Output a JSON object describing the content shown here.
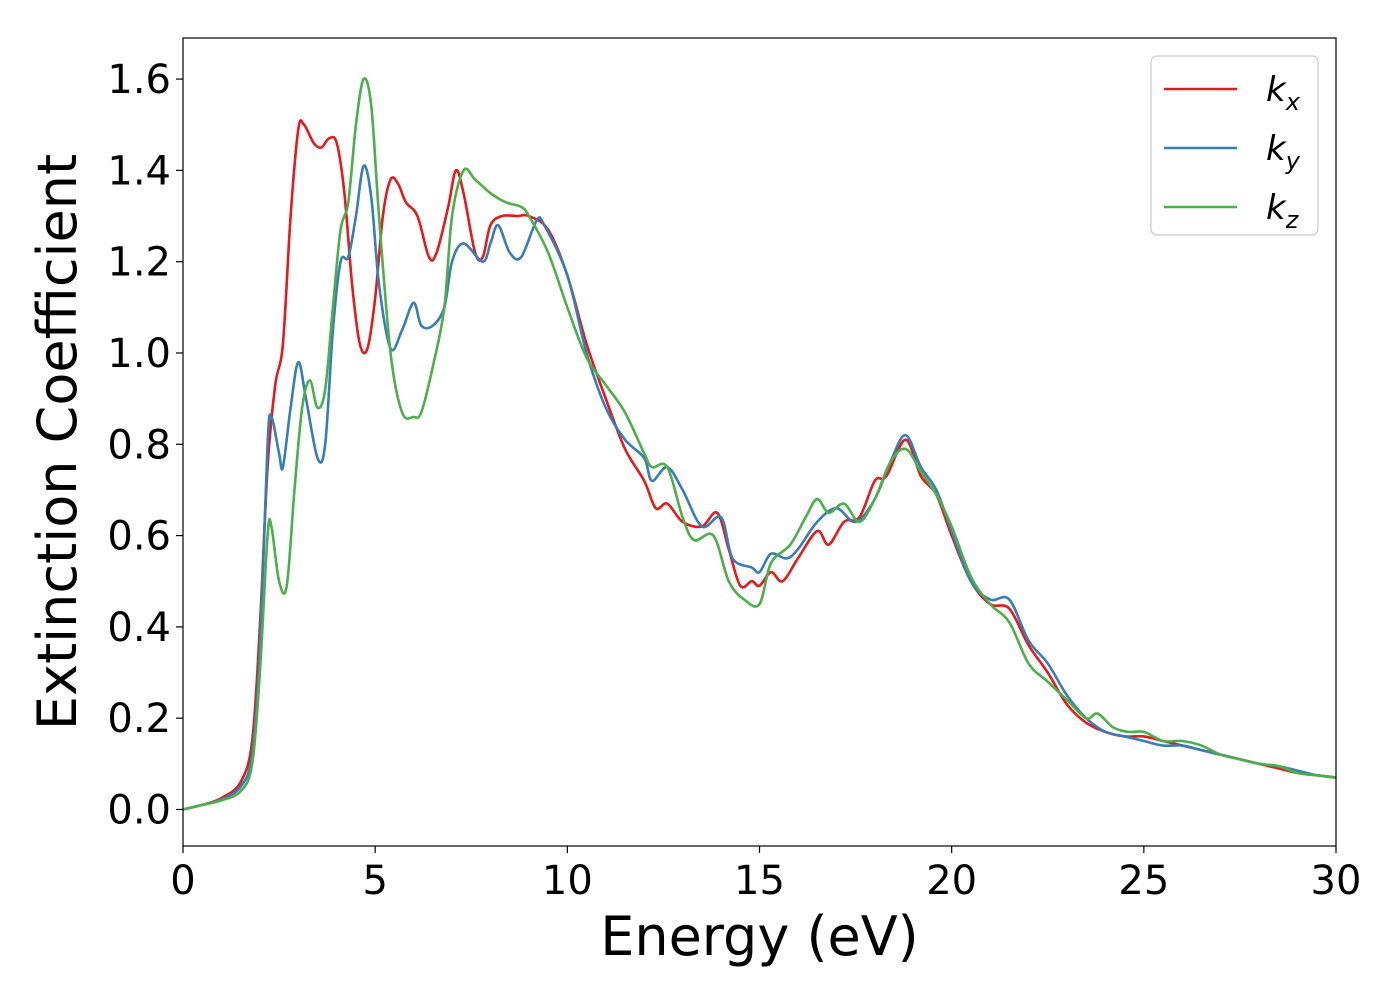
{
  "chart_data": {
    "type": "line",
    "title": "",
    "xlabel": "Energy (eV)",
    "ylabel": "Extinction Coefficient",
    "xlim": [
      0,
      30
    ],
    "ylim": [
      -0.08,
      1.69
    ],
    "xticks": [
      "0",
      "5",
      "10",
      "15",
      "20",
      "25",
      "30"
    ],
    "yticks": [
      "0.0",
      "0.2",
      "0.4",
      "0.6",
      "0.8",
      "1.0",
      "1.2",
      "1.4",
      "1.6"
    ],
    "grid": false,
    "legend_position": "top-right",
    "series": [
      {
        "name": "k_x",
        "legend_base": "k",
        "legend_sub": "x",
        "color": "#e41a1c",
        "points": [
          [
            0,
            0
          ],
          [
            0.5,
            0.01
          ],
          [
            1,
            0.025
          ],
          [
            1.5,
            0.06
          ],
          [
            1.8,
            0.15
          ],
          [
            2.0,
            0.4
          ],
          [
            2.2,
            0.75
          ],
          [
            2.4,
            0.93
          ],
          [
            2.6,
            1.02
          ],
          [
            2.8,
            1.3
          ],
          [
            3.0,
            1.49
          ],
          [
            3.15,
            1.5
          ],
          [
            3.4,
            1.46
          ],
          [
            3.6,
            1.45
          ],
          [
            3.8,
            1.47
          ],
          [
            4.0,
            1.46
          ],
          [
            4.2,
            1.35
          ],
          [
            4.4,
            1.15
          ],
          [
            4.6,
            1.02
          ],
          [
            4.8,
            1.01
          ],
          [
            5.0,
            1.12
          ],
          [
            5.2,
            1.3
          ],
          [
            5.4,
            1.38
          ],
          [
            5.6,
            1.37
          ],
          [
            5.8,
            1.33
          ],
          [
            6.1,
            1.3
          ],
          [
            6.4,
            1.21
          ],
          [
            6.6,
            1.22
          ],
          [
            6.9,
            1.32
          ],
          [
            7.1,
            1.4
          ],
          [
            7.3,
            1.35
          ],
          [
            7.6,
            1.22
          ],
          [
            7.8,
            1.21
          ],
          [
            8.0,
            1.28
          ],
          [
            8.3,
            1.3
          ],
          [
            8.7,
            1.3
          ],
          [
            9.0,
            1.3
          ],
          [
            9.5,
            1.27
          ],
          [
            10.0,
            1.17
          ],
          [
            10.5,
            1.02
          ],
          [
            11.0,
            0.9
          ],
          [
            11.5,
            0.79
          ],
          [
            12.0,
            0.72
          ],
          [
            12.3,
            0.66
          ],
          [
            12.6,
            0.67
          ],
          [
            13.0,
            0.63
          ],
          [
            13.5,
            0.62
          ],
          [
            13.9,
            0.65
          ],
          [
            14.2,
            0.57
          ],
          [
            14.5,
            0.49
          ],
          [
            14.8,
            0.5
          ],
          [
            15.0,
            0.49
          ],
          [
            15.3,
            0.52
          ],
          [
            15.6,
            0.5
          ],
          [
            16.0,
            0.55
          ],
          [
            16.5,
            0.61
          ],
          [
            16.8,
            0.58
          ],
          [
            17.2,
            0.63
          ],
          [
            17.6,
            0.64
          ],
          [
            18.0,
            0.72
          ],
          [
            18.3,
            0.73
          ],
          [
            18.8,
            0.81
          ],
          [
            19.2,
            0.73
          ],
          [
            19.6,
            0.69
          ],
          [
            20.0,
            0.6
          ],
          [
            20.5,
            0.5
          ],
          [
            21.0,
            0.45
          ],
          [
            21.5,
            0.44
          ],
          [
            22.0,
            0.36
          ],
          [
            22.5,
            0.3
          ],
          [
            23.0,
            0.23
          ],
          [
            23.5,
            0.19
          ],
          [
            24.0,
            0.17
          ],
          [
            24.5,
            0.16
          ],
          [
            25.0,
            0.16
          ],
          [
            25.5,
            0.15
          ],
          [
            26.0,
            0.14
          ],
          [
            26.5,
            0.13
          ],
          [
            27.0,
            0.12
          ],
          [
            27.5,
            0.11
          ],
          [
            28.0,
            0.1
          ],
          [
            28.5,
            0.09
          ],
          [
            29.0,
            0.08
          ],
          [
            29.5,
            0.075
          ],
          [
            30.0,
            0.07
          ]
        ]
      },
      {
        "name": "k_y",
        "legend_base": "k",
        "legend_sub": "y",
        "color": "#377eb8",
        "points": [
          [
            0,
            0
          ],
          [
            0.5,
            0.01
          ],
          [
            1,
            0.022
          ],
          [
            1.5,
            0.05
          ],
          [
            1.8,
            0.12
          ],
          [
            2.0,
            0.35
          ],
          [
            2.2,
            0.8
          ],
          [
            2.3,
            0.86
          ],
          [
            2.5,
            0.78
          ],
          [
            2.6,
            0.75
          ],
          [
            2.8,
            0.88
          ],
          [
            3.0,
            0.98
          ],
          [
            3.2,
            0.9
          ],
          [
            3.5,
            0.77
          ],
          [
            3.7,
            0.8
          ],
          [
            3.9,
            1.05
          ],
          [
            4.1,
            1.2
          ],
          [
            4.3,
            1.21
          ],
          [
            4.5,
            1.3
          ],
          [
            4.7,
            1.41
          ],
          [
            4.9,
            1.34
          ],
          [
            5.1,
            1.15
          ],
          [
            5.4,
            1.01
          ],
          [
            5.7,
            1.05
          ],
          [
            6.0,
            1.11
          ],
          [
            6.2,
            1.06
          ],
          [
            6.5,
            1.06
          ],
          [
            6.8,
            1.1
          ],
          [
            7.0,
            1.2
          ],
          [
            7.3,
            1.24
          ],
          [
            7.8,
            1.2
          ],
          [
            8.0,
            1.24
          ],
          [
            8.2,
            1.28
          ],
          [
            8.5,
            1.22
          ],
          [
            8.8,
            1.21
          ],
          [
            9.2,
            1.29
          ],
          [
            9.4,
            1.28
          ],
          [
            10.0,
            1.17
          ],
          [
            10.5,
            1.0
          ],
          [
            11.0,
            0.88
          ],
          [
            11.5,
            0.81
          ],
          [
            12.0,
            0.77
          ],
          [
            12.2,
            0.72
          ],
          [
            12.6,
            0.75
          ],
          [
            13.0,
            0.7
          ],
          [
            13.5,
            0.62
          ],
          [
            14.0,
            0.64
          ],
          [
            14.3,
            0.55
          ],
          [
            14.8,
            0.53
          ],
          [
            15.0,
            0.52
          ],
          [
            15.3,
            0.56
          ],
          [
            15.7,
            0.55
          ],
          [
            16.0,
            0.57
          ],
          [
            16.5,
            0.63
          ],
          [
            17.0,
            0.66
          ],
          [
            17.5,
            0.63
          ],
          [
            18.0,
            0.68
          ],
          [
            18.4,
            0.76
          ],
          [
            18.8,
            0.82
          ],
          [
            19.2,
            0.75
          ],
          [
            19.6,
            0.7
          ],
          [
            20.0,
            0.61
          ],
          [
            20.5,
            0.5
          ],
          [
            21.0,
            0.46
          ],
          [
            21.5,
            0.46
          ],
          [
            22.0,
            0.37
          ],
          [
            22.5,
            0.32
          ],
          [
            23.0,
            0.25
          ],
          [
            23.5,
            0.2
          ],
          [
            24.0,
            0.17
          ],
          [
            24.5,
            0.16
          ],
          [
            25.0,
            0.15
          ],
          [
            25.5,
            0.14
          ],
          [
            26.0,
            0.14
          ],
          [
            26.5,
            0.13
          ],
          [
            27.0,
            0.12
          ],
          [
            27.5,
            0.11
          ],
          [
            28.0,
            0.1
          ],
          [
            28.5,
            0.095
          ],
          [
            29.0,
            0.085
          ],
          [
            29.5,
            0.075
          ],
          [
            30.0,
            0.07
          ]
        ]
      },
      {
        "name": "k_z",
        "legend_base": "k",
        "legend_sub": "z",
        "color": "#4daf4a",
        "points": [
          [
            0,
            0
          ],
          [
            0.5,
            0.01
          ],
          [
            1,
            0.02
          ],
          [
            1.5,
            0.04
          ],
          [
            1.8,
            0.1
          ],
          [
            2.0,
            0.3
          ],
          [
            2.2,
            0.6
          ],
          [
            2.3,
            0.62
          ],
          [
            2.5,
            0.5
          ],
          [
            2.7,
            0.49
          ],
          [
            2.9,
            0.7
          ],
          [
            3.1,
            0.88
          ],
          [
            3.3,
            0.94
          ],
          [
            3.5,
            0.88
          ],
          [
            3.7,
            0.92
          ],
          [
            3.9,
            1.1
          ],
          [
            4.1,
            1.27
          ],
          [
            4.3,
            1.33
          ],
          [
            4.5,
            1.5
          ],
          [
            4.7,
            1.6
          ],
          [
            4.9,
            1.54
          ],
          [
            5.1,
            1.3
          ],
          [
            5.4,
            1.0
          ],
          [
            5.7,
            0.87
          ],
          [
            6.0,
            0.86
          ],
          [
            6.2,
            0.87
          ],
          [
            6.5,
            0.97
          ],
          [
            6.8,
            1.1
          ],
          [
            7.0,
            1.3
          ],
          [
            7.3,
            1.4
          ],
          [
            7.6,
            1.38
          ],
          [
            8.0,
            1.35
          ],
          [
            8.4,
            1.33
          ],
          [
            8.8,
            1.32
          ],
          [
            9.0,
            1.3
          ],
          [
            9.5,
            1.22
          ],
          [
            10.0,
            1.1
          ],
          [
            10.5,
            0.99
          ],
          [
            11.0,
            0.93
          ],
          [
            11.5,
            0.87
          ],
          [
            12.0,
            0.78
          ],
          [
            12.2,
            0.75
          ],
          [
            12.6,
            0.75
          ],
          [
            13.0,
            0.64
          ],
          [
            13.3,
            0.59
          ],
          [
            13.8,
            0.6
          ],
          [
            14.2,
            0.5
          ],
          [
            14.6,
            0.46
          ],
          [
            15.0,
            0.45
          ],
          [
            15.3,
            0.54
          ],
          [
            15.8,
            0.58
          ],
          [
            16.2,
            0.64
          ],
          [
            16.5,
            0.68
          ],
          [
            16.8,
            0.65
          ],
          [
            17.2,
            0.67
          ],
          [
            17.6,
            0.63
          ],
          [
            18.0,
            0.68
          ],
          [
            18.4,
            0.76
          ],
          [
            18.8,
            0.79
          ],
          [
            19.2,
            0.74
          ],
          [
            19.6,
            0.69
          ],
          [
            20.0,
            0.62
          ],
          [
            20.5,
            0.51
          ],
          [
            21.0,
            0.45
          ],
          [
            21.5,
            0.41
          ],
          [
            22.0,
            0.32
          ],
          [
            22.5,
            0.28
          ],
          [
            23.0,
            0.24
          ],
          [
            23.5,
            0.2
          ],
          [
            23.8,
            0.21
          ],
          [
            24.2,
            0.18
          ],
          [
            24.6,
            0.17
          ],
          [
            25.0,
            0.17
          ],
          [
            25.5,
            0.15
          ],
          [
            26.0,
            0.15
          ],
          [
            26.5,
            0.14
          ],
          [
            27.0,
            0.12
          ],
          [
            27.5,
            0.11
          ],
          [
            28.0,
            0.1
          ],
          [
            28.5,
            0.095
          ],
          [
            29.0,
            0.08
          ],
          [
            29.5,
            0.075
          ],
          [
            30.0,
            0.07
          ]
        ]
      }
    ]
  }
}
